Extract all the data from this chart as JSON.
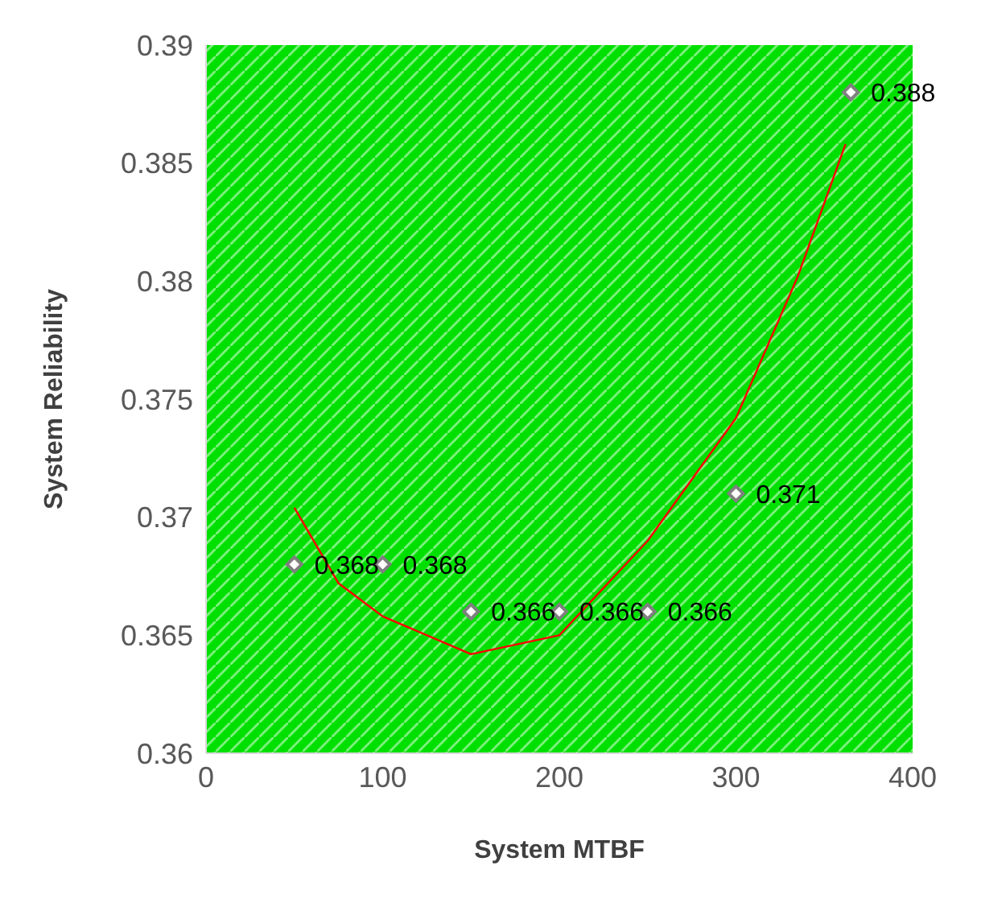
{
  "chart_data": {
    "type": "scatter",
    "xlabel": "System MTBF",
    "ylabel": "System Reliability",
    "xlim": [
      0,
      400
    ],
    "xticks": [
      0,
      100,
      200,
      300,
      400
    ],
    "ylim": [
      0.36,
      0.39
    ],
    "yticks": [
      0.36,
      0.365,
      0.37,
      0.375,
      0.38,
      0.385,
      0.39
    ],
    "grid": false,
    "legend": false,
    "series": [
      {
        "marker": "diamond",
        "color": "#7f7f7f",
        "x": [
          50,
          100,
          150,
          200,
          250,
          300,
          365
        ],
        "values": [
          0.368,
          0.368,
          0.366,
          0.366,
          0.366,
          0.371,
          0.388
        ],
        "value_labels": [
          "0.368",
          "0.368",
          "0.366",
          "0.366",
          "0.366",
          "0.371",
          "0.388"
        ]
      },
      {
        "type": "line",
        "marker": "none",
        "color": "#ff0000",
        "x": [
          50,
          75,
          100,
          150,
          200,
          250,
          300,
          335,
          362
        ],
        "values": [
          0.3704,
          0.3672,
          0.3658,
          0.3642,
          0.365,
          0.369,
          0.3742,
          0.3802,
          0.3858
        ]
      }
    ]
  }
}
